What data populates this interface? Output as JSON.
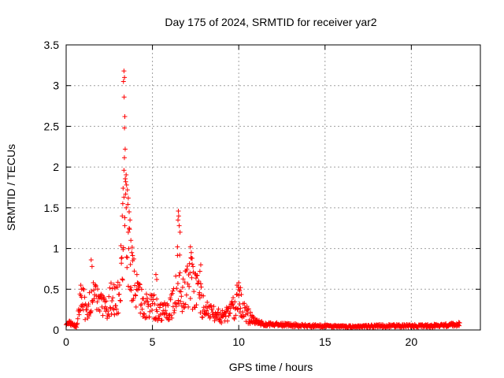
{
  "colors": {
    "series": "#ff0000",
    "grid": "#a0a0a0",
    "axis": "#000000"
  },
  "chart_data": {
    "type": "scatter",
    "title": "Day 175 of 2024, SRMTID for receiver yar2",
    "xlabel": "GPS time / hours",
    "ylabel": "SRMTID / TECUs",
    "xlim": [
      0,
      24
    ],
    "ylim": [
      0,
      3.5
    ],
    "xticks": [
      0,
      5,
      10,
      15,
      20
    ],
    "xtick_labels": [
      "0",
      "5",
      "10",
      "15",
      "20"
    ],
    "yticks": [
      0,
      0.5,
      1,
      1.5,
      2,
      2.5,
      3,
      3.5
    ],
    "ytick_labels": [
      "0",
      "0.5",
      "1",
      "1.5",
      "2",
      "2.5",
      "3",
      "3.5"
    ],
    "grid": true,
    "marker": "+",
    "series": [
      {
        "name": "yar2",
        "profile": [
          [
            0.0,
            0.1
          ],
          [
            0.3,
            0.08
          ],
          [
            0.6,
            0.05
          ],
          [
            0.8,
            0.3
          ],
          [
            1.0,
            0.35
          ],
          [
            1.2,
            0.2
          ],
          [
            1.5,
            0.45
          ],
          [
            1.8,
            0.35
          ],
          [
            2.0,
            0.3
          ],
          [
            2.3,
            0.25
          ],
          [
            2.6,
            0.4
          ],
          [
            2.9,
            0.35
          ],
          [
            3.1,
            0.45
          ],
          [
            3.25,
            0.9
          ],
          [
            3.35,
            1.6
          ],
          [
            3.45,
            1.3
          ],
          [
            3.6,
            1.0
          ],
          [
            3.8,
            0.7
          ],
          [
            4.0,
            0.5
          ],
          [
            4.3,
            0.35
          ],
          [
            4.6,
            0.3
          ],
          [
            5.0,
            0.3
          ],
          [
            5.3,
            0.25
          ],
          [
            5.6,
            0.22
          ],
          [
            6.0,
            0.25
          ],
          [
            6.3,
            0.4
          ],
          [
            6.5,
            0.7
          ],
          [
            6.7,
            0.45
          ],
          [
            7.0,
            0.5
          ],
          [
            7.2,
            0.6
          ],
          [
            7.5,
            0.5
          ],
          [
            7.7,
            0.45
          ],
          [
            8.0,
            0.25
          ],
          [
            8.5,
            0.2
          ],
          [
            9.0,
            0.15
          ],
          [
            9.5,
            0.2
          ],
          [
            9.8,
            0.3
          ],
          [
            10.0,
            0.42
          ],
          [
            10.2,
            0.3
          ],
          [
            10.5,
            0.18
          ],
          [
            11.0,
            0.1
          ],
          [
            11.5,
            0.07
          ],
          [
            12.0,
            0.07
          ],
          [
            13.0,
            0.06
          ],
          [
            14.0,
            0.05
          ],
          [
            15.0,
            0.05
          ],
          [
            16.0,
            0.04
          ],
          [
            17.0,
            0.04
          ],
          [
            18.0,
            0.05
          ],
          [
            19.0,
            0.05
          ],
          [
            20.0,
            0.05
          ],
          [
            21.0,
            0.05
          ],
          [
            22.0,
            0.06
          ],
          [
            22.8,
            0.07
          ]
        ],
        "peaks": [
          [
            3.35,
            3.18
          ],
          [
            3.38,
            3.1
          ],
          [
            3.32,
            3.05
          ],
          [
            3.36,
            2.86
          ],
          [
            3.4,
            2.62
          ],
          [
            3.38,
            2.48
          ],
          [
            3.42,
            2.22
          ],
          [
            3.35,
            1.96
          ],
          [
            3.45,
            1.82
          ],
          [
            3.5,
            1.78
          ],
          [
            3.3,
            1.74
          ],
          [
            3.55,
            1.72
          ],
          [
            3.6,
            1.62
          ],
          [
            3.28,
            1.55
          ],
          [
            3.48,
            1.5
          ],
          [
            3.65,
            1.45
          ],
          [
            3.7,
            1.35
          ],
          [
            3.25,
            1.4
          ],
          [
            3.4,
            1.28
          ],
          [
            3.6,
            1.2
          ],
          [
            3.75,
            1.1
          ],
          [
            3.8,
            0.95
          ],
          [
            3.85,
            0.85
          ],
          [
            3.2,
            0.82
          ],
          [
            1.45,
            0.86
          ],
          [
            1.5,
            0.78
          ],
          [
            0.85,
            0.55
          ],
          [
            0.9,
            0.5
          ],
          [
            6.5,
            1.46
          ],
          [
            6.52,
            1.4
          ],
          [
            6.48,
            1.35
          ],
          [
            6.55,
            1.28
          ],
          [
            6.6,
            1.2
          ],
          [
            6.45,
            1.02
          ],
          [
            6.58,
            0.92
          ],
          [
            7.2,
            1.02
          ],
          [
            7.25,
            0.95
          ],
          [
            7.3,
            0.88
          ],
          [
            7.8,
            0.8
          ],
          [
            7.75,
            0.72
          ],
          [
            5.2,
            0.68
          ],
          [
            5.25,
            0.62
          ],
          [
            9.9,
            0.55
          ],
          [
            10.0,
            0.58
          ],
          [
            10.1,
            0.52
          ],
          [
            10.05,
            0.48
          ]
        ]
      }
    ]
  }
}
